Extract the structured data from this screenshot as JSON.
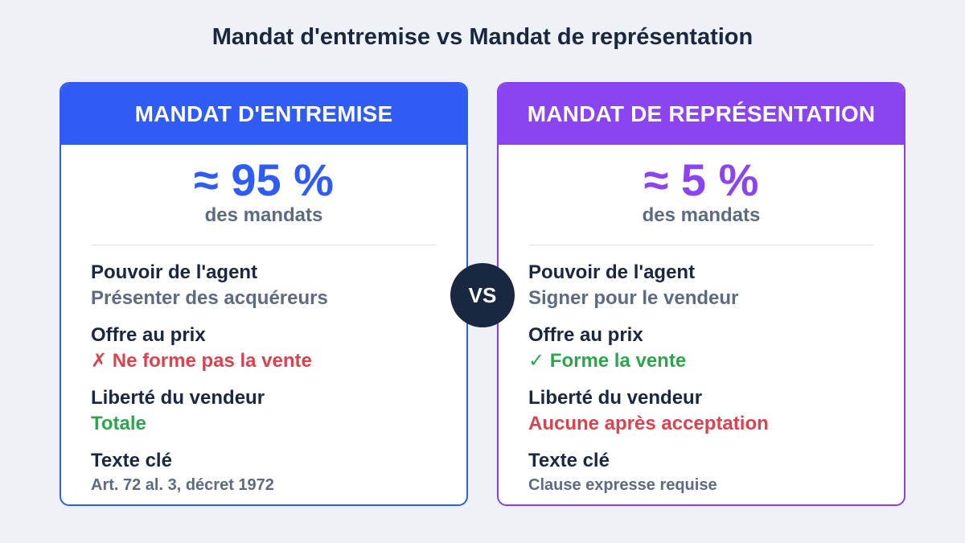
{
  "title": "Mandat d'entremise vs Mandat de représentation",
  "vs_label": "VS",
  "cards": [
    {
      "header": "MANDAT D'ENTREMISE",
      "share": "≈ 95 %",
      "share_sub": "des mandats",
      "color": "#2f5cf4",
      "rows": [
        {
          "label": "Pouvoir de l'agent",
          "value": "Présenter des acquéreurs",
          "tone": "grey"
        },
        {
          "label": "Offre au prix",
          "value": "✗ Ne forme pas la vente",
          "tone": "red"
        },
        {
          "label": "Liberté du vendeur",
          "value": "Totale",
          "tone": "green"
        },
        {
          "label": "Texte clé",
          "value": "Art. 72 al. 3, décret 1972",
          "tone": "grey"
        }
      ]
    },
    {
      "header": "MANDAT DE REPRÉSENTATION",
      "share": "≈ 5 %",
      "share_sub": "des mandats",
      "color": "#8b45f0",
      "rows": [
        {
          "label": "Pouvoir de l'agent",
          "value": "Signer pour le vendeur",
          "tone": "grey"
        },
        {
          "label": "Offre au prix",
          "value": "✓ Forme la vente",
          "tone": "green"
        },
        {
          "label": "Liberté du vendeur",
          "value": "Aucune après acceptation",
          "tone": "red"
        },
        {
          "label": "Texte clé",
          "value": "Clause expresse requise",
          "tone": "grey"
        }
      ]
    }
  ]
}
